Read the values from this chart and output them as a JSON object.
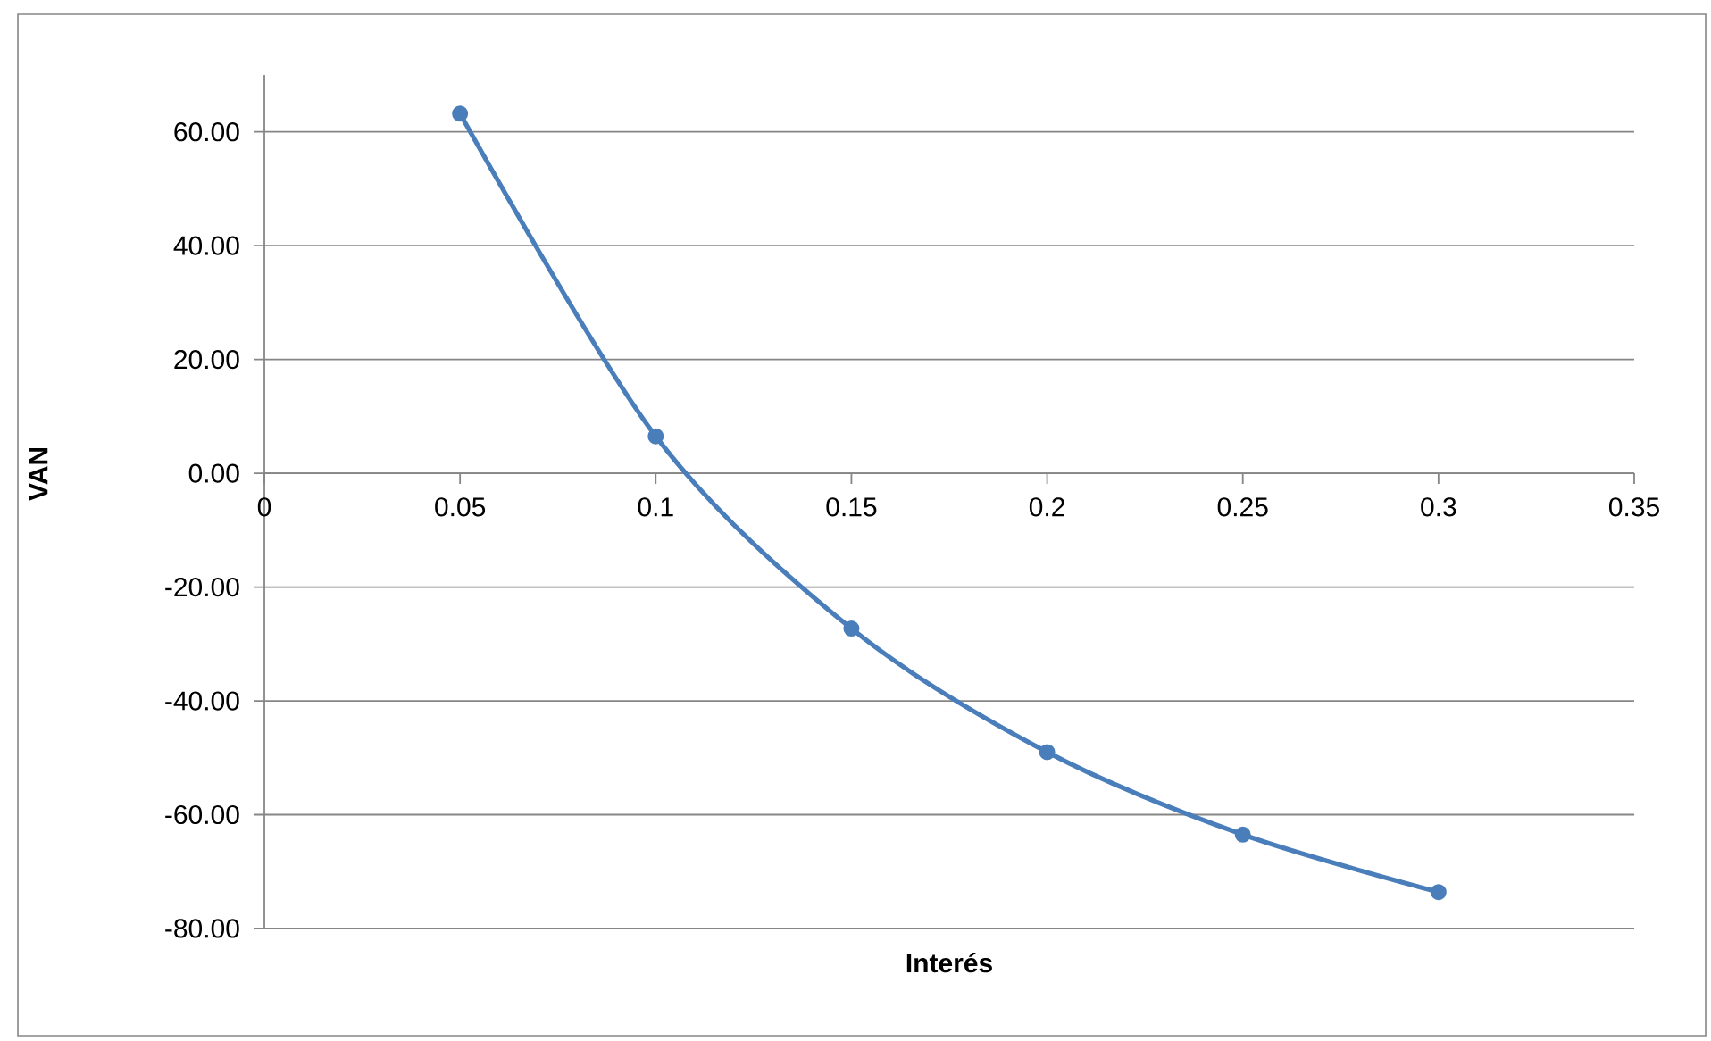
{
  "chart_data": {
    "type": "line",
    "xlabel": "Interés",
    "ylabel": "VAN",
    "x": [
      0.05,
      0.1,
      0.15,
      0.2,
      0.25,
      0.3
    ],
    "series": [
      {
        "color": "#4a7ebb",
        "values": [
          63.2,
          6.5,
          -27.3,
          -49.0,
          -63.5,
          -73.6
        ]
      }
    ],
    "xlim": [
      0,
      0.35
    ],
    "xticks": [
      0,
      0.05,
      0.1,
      0.15,
      0.2,
      0.25,
      0.3,
      0.35
    ],
    "ylim": [
      -80,
      70
    ],
    "yticks": [
      {
        "value": -80,
        "label": "-80.00"
      },
      {
        "value": -60,
        "label": "-60.00"
      },
      {
        "value": -40,
        "label": "-40.00"
      },
      {
        "value": -20,
        "label": "-20.00"
      },
      {
        "value": 0,
        "label": "0.00"
      },
      {
        "value": 20,
        "label": "20.00"
      },
      {
        "value": 40,
        "label": "40.00"
      },
      {
        "value": 60,
        "label": "60.00"
      }
    ],
    "grid": "y",
    "marker": "circle"
  }
}
